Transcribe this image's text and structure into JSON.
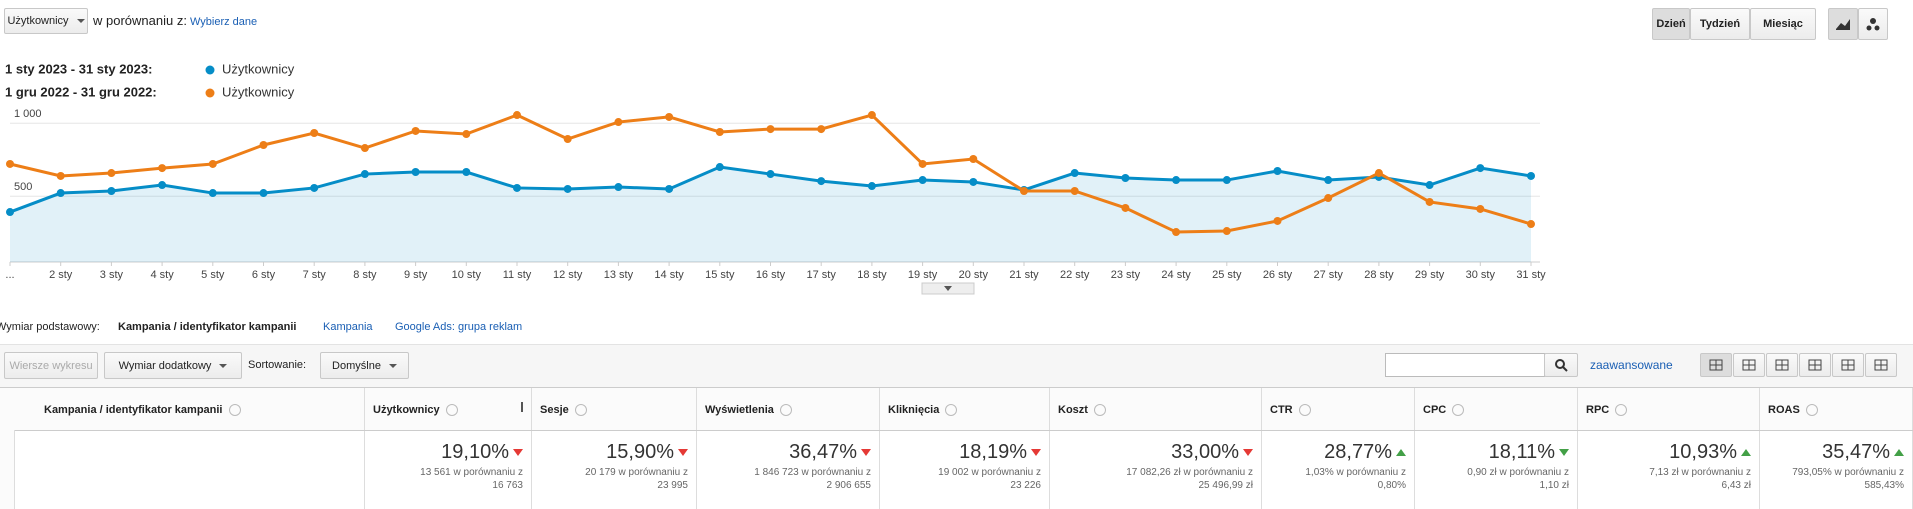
{
  "header": {
    "metric_select": "Użytkownicy",
    "compare_label": "w porównaniu z:",
    "choose_data": "Wybierz dane",
    "period_buttons": [
      "Dzień",
      "Tydzień",
      "Miesiąc"
    ]
  },
  "chart_data": {
    "type": "line",
    "categories": [
      "...",
      "2 sty",
      "3 sty",
      "4 sty",
      "5 sty",
      "6 sty",
      "7 sty",
      "8 sty",
      "9 sty",
      "10 sty",
      "11 sty",
      "12 sty",
      "13 sty",
      "14 sty",
      "15 sty",
      "16 sty",
      "17 sty",
      "18 sty",
      "19 sty",
      "20 sty",
      "21 sty",
      "22 sty",
      "23 sty",
      "24 sty",
      "25 sty",
      "26 sty",
      "27 sty",
      "28 sty",
      "29 sty",
      "30 sty",
      "31 sty"
    ],
    "series": [
      {
        "name": "Użytkownicy",
        "period": "1 sty 2023 - 31 sty 2023:",
        "color": "#058dc7",
        "area": true,
        "values": [
          392,
          522,
          536,
          577,
          522,
          522,
          557,
          652,
          666,
          666,
          557,
          550,
          563,
          550,
          700,
          652,
          604,
          570,
          611,
          598,
          543,
          659,
          625,
          611,
          611,
          673,
          611,
          632,
          577,
          693,
          639
        ]
      },
      {
        "name": "Użytkownicy",
        "period": "1 gru 2022 - 31 gru 2022:",
        "color": "#ed7e17",
        "area": false,
        "values": [
          721,
          639,
          659,
          693,
          721,
          851,
          933,
          830,
          947,
          926,
          1056,
          892,
          1008,
          1043,
          940,
          960,
          960,
          1056,
          721,
          755,
          536,
          536,
          420,
          255,
          262,
          331,
          488,
          659,
          461,
          413,
          310
        ]
      }
    ],
    "ylim": [
      50,
      1070
    ],
    "yticks": [
      {
        "value": 1000,
        "label": "1 000"
      },
      500
    ],
    "grid": true
  },
  "dimension": {
    "label": "Wymiar podstawowy:",
    "options": [
      "Kampania / identyfikator kampanii",
      "Kampania",
      "Google Ads: grupa reklam"
    ]
  },
  "toolbar": {
    "chart_rows": "Wiersze wykresu",
    "secondary": "Wymiar dodatkowy",
    "sort_label": "Sortowanie:",
    "sort_value": "Domyślne",
    "advanced": "zaawansowane"
  },
  "table": {
    "columns": [
      "Kampania / identyfikator kampanii",
      "Użytkownicy",
      "Sesje",
      "Wyświetlenia",
      "Kliknięcia",
      "Koszt",
      "CTR",
      "CPC",
      "RPC",
      "ROAS"
    ],
    "totals": [
      {
        "change": "19,10%",
        "arrow": "down",
        "arrow_color": "#e53935",
        "detail": "13 561 w porównaniu z",
        "compare": "16 763"
      },
      {
        "change": "15,90%",
        "arrow": "down",
        "arrow_color": "#e53935",
        "detail": "20 179 w porównaniu z",
        "compare": "23 995"
      },
      {
        "change": "36,47%",
        "arrow": "down",
        "arrow_color": "#e53935",
        "detail": "1 846 723 w porównaniu z",
        "compare": "2 906 655"
      },
      {
        "change": "18,19%",
        "arrow": "down",
        "arrow_color": "#e53935",
        "detail": "19 002 w porównaniu z",
        "compare": "23 226"
      },
      {
        "change": "33,00%",
        "arrow": "down",
        "arrow_color": "#e53935",
        "detail": "17 082,26 zł w porównaniu z",
        "compare": "25 496,99 zł"
      },
      {
        "change": "28,77%",
        "arrow": "up",
        "arrow_color": "#43a047",
        "detail": "1,03% w porównaniu z",
        "compare": "0,80%"
      },
      {
        "change": "18,11%",
        "arrow": "down",
        "arrow_color": "#43a047",
        "detail": "0,90 zł w porównaniu z",
        "compare": "1,10 zł"
      },
      {
        "change": "10,93%",
        "arrow": "up",
        "arrow_color": "#43a047",
        "detail": "7,13 zł w porównaniu z",
        "compare": "6,43 zł"
      },
      {
        "change": "35,47%",
        "arrow": "up",
        "arrow_color": "#43a047",
        "detail": "793,05% w porównaniu z",
        "compare": "585,43%"
      }
    ]
  }
}
